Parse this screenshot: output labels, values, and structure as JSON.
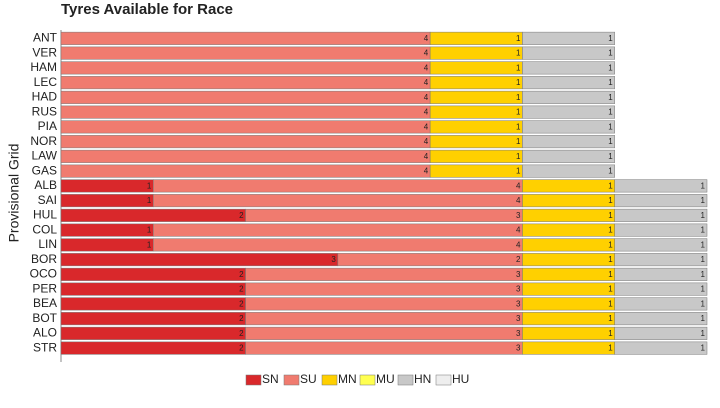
{
  "chart_data": {
    "type": "stacked-bar-horizontal",
    "title": "Tyres Available for Race",
    "y_label": "Provisional Grid",
    "categories": [
      "ANT",
      "VER",
      "HAM",
      "LEC",
      "HAD",
      "RUS",
      "PIA",
      "NOR",
      "LAW",
      "GAS",
      "ALB",
      "SAI",
      "HUL",
      "COL",
      "LIN",
      "BOR",
      "OCO",
      "PER",
      "BEA",
      "BOT",
      "ALO",
      "STR"
    ],
    "series": [
      {
        "name": "SN",
        "color": "#d9282b",
        "values": [
          0,
          0,
          0,
          0,
          0,
          0,
          0,
          0,
          0,
          0,
          1,
          1,
          2,
          1,
          1,
          3,
          2,
          2,
          2,
          2,
          2,
          2
        ]
      },
      {
        "name": "SU",
        "color": "#f07b6f",
        "values": [
          4,
          4,
          4,
          4,
          4,
          4,
          4,
          4,
          4,
          4,
          4,
          4,
          3,
          4,
          4,
          2,
          3,
          3,
          3,
          3,
          3,
          3
        ]
      },
      {
        "name": "MN",
        "color": "#ffd000",
        "values": [
          1,
          1,
          1,
          1,
          1,
          1,
          1,
          1,
          1,
          1,
          1,
          1,
          1,
          1,
          1,
          1,
          1,
          1,
          1,
          1,
          1,
          1
        ]
      },
      {
        "name": "MU",
        "color": "#ffff50",
        "values": [
          0,
          0,
          0,
          0,
          0,
          0,
          0,
          0,
          0,
          0,
          0,
          0,
          0,
          0,
          0,
          0,
          0,
          0,
          0,
          0,
          0,
          0
        ]
      },
      {
        "name": "HN",
        "color": "#c8c8c8",
        "values": [
          1,
          1,
          1,
          1,
          1,
          1,
          1,
          1,
          1,
          1,
          1,
          1,
          1,
          1,
          1,
          1,
          1,
          1,
          1,
          1,
          1,
          1
        ]
      },
      {
        "name": "HU",
        "color": "#eeeeee",
        "values": [
          0,
          0,
          0,
          0,
          0,
          0,
          0,
          0,
          0,
          0,
          0,
          0,
          0,
          0,
          0,
          0,
          0,
          0,
          0,
          0,
          0,
          0
        ]
      }
    ]
  }
}
